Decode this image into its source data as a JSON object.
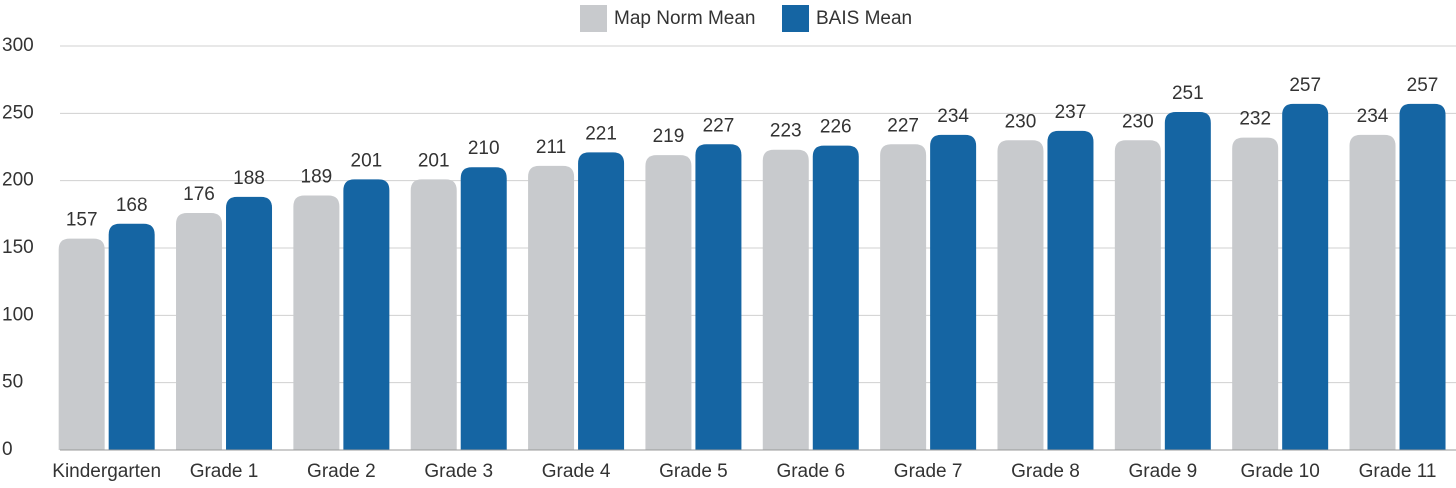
{
  "chart_data": {
    "type": "bar",
    "categories": [
      "Kindergarten",
      "Grade 1",
      "Grade 2",
      "Grade 3",
      "Grade 4",
      "Grade 5",
      "Grade 6",
      "Grade 7",
      "Grade 8",
      "Grade 9",
      "Grade 10",
      "Grade 11"
    ],
    "series": [
      {
        "name": "Map Norm Mean",
        "color": "#c8cacd",
        "values": [
          157,
          176,
          189,
          201,
          211,
          219,
          223,
          227,
          230,
          230,
          232,
          234
        ]
      },
      {
        "name": "BAIS Mean",
        "color": "#1565a3",
        "values": [
          168,
          188,
          201,
          210,
          221,
          227,
          226,
          234,
          237,
          251,
          257,
          257
        ]
      }
    ],
    "ylim": [
      0,
      300
    ],
    "yticks": [
      0,
      50,
      100,
      150,
      200,
      250,
      300
    ],
    "grid": true,
    "legend": "top"
  }
}
